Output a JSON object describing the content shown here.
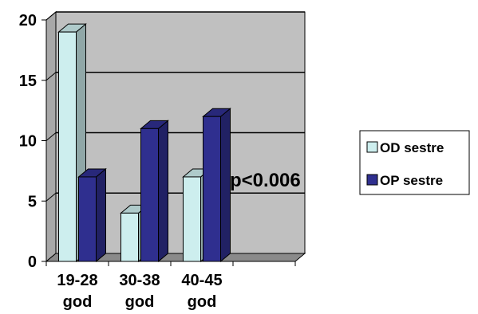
{
  "chart_data": {
    "type": "bar",
    "three_d": true,
    "categories": [
      "19-28\ngod",
      "30-38\ngod",
      "40-45\ngod",
      ""
    ],
    "series": [
      {
        "name": "OD sestre",
        "values": [
          19,
          4,
          7,
          null
        ],
        "color": "#cdeeee"
      },
      {
        "name": "OP sestre",
        "values": [
          7,
          11,
          12,
          null
        ],
        "color": "#2f2f8f"
      }
    ],
    "ylim": [
      0,
      20
    ],
    "yticks": [
      0,
      5,
      10,
      15,
      20
    ],
    "grid": true,
    "legend": "right",
    "annotation": "p<0.006",
    "plot_background": "#c0c0c0",
    "wall_color": "#a8a8a8"
  }
}
